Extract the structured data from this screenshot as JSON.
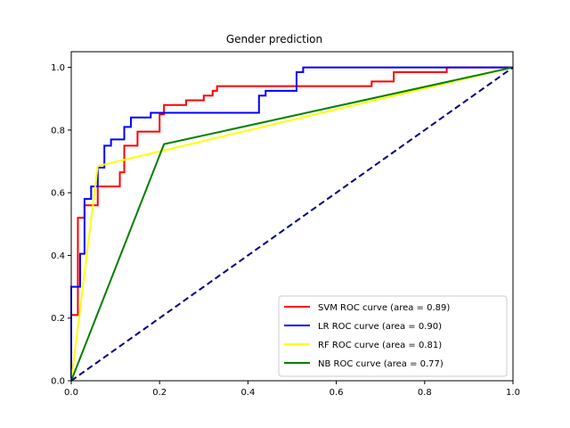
{
  "chart_data": {
    "type": "line",
    "title": "Gender prediction",
    "xlabel": "",
    "ylabel": "",
    "xlim": [
      0.0,
      1.0
    ],
    "ylim": [
      0.0,
      1.05
    ],
    "xticks": [
      "0.0",
      "0.2",
      "0.4",
      "0.6",
      "0.8",
      "1.0"
    ],
    "yticks": [
      "0.0",
      "0.2",
      "0.4",
      "0.6",
      "0.8",
      "1.0"
    ],
    "grid": false,
    "legend_position": "lower-right",
    "series": [
      {
        "name": "SVM ROC curve (area = 0.89)",
        "color": "#ff0000",
        "x": [
          0.0,
          0.0,
          0.015,
          0.015,
          0.03,
          0.03,
          0.06,
          0.06,
          0.11,
          0.11,
          0.12,
          0.12,
          0.15,
          0.15,
          0.2,
          0.2,
          0.21,
          0.21,
          0.26,
          0.26,
          0.3,
          0.3,
          0.32,
          0.32,
          0.33,
          0.33,
          0.68,
          0.68,
          0.73,
          0.73,
          0.85,
          0.85,
          1.0
        ],
        "y": [
          0.0,
          0.21,
          0.21,
          0.52,
          0.52,
          0.56,
          0.56,
          0.62,
          0.62,
          0.665,
          0.665,
          0.75,
          0.75,
          0.795,
          0.795,
          0.85,
          0.85,
          0.88,
          0.88,
          0.895,
          0.895,
          0.91,
          0.91,
          0.925,
          0.925,
          0.94,
          0.94,
          0.955,
          0.955,
          0.985,
          0.985,
          1.0,
          1.0
        ]
      },
      {
        "name": "LR ROC curve (area = 0.90)",
        "color": "#0000ff",
        "x": [
          0.0,
          0.0,
          0.02,
          0.02,
          0.03,
          0.03,
          0.045,
          0.045,
          0.06,
          0.06,
          0.075,
          0.075,
          0.09,
          0.09,
          0.12,
          0.12,
          0.135,
          0.135,
          0.18,
          0.18,
          0.425,
          0.425,
          0.44,
          0.44,
          0.51,
          0.51,
          0.525,
          0.525,
          1.0
        ],
        "y": [
          0.0,
          0.3,
          0.3,
          0.405,
          0.405,
          0.58,
          0.58,
          0.62,
          0.62,
          0.68,
          0.68,
          0.75,
          0.75,
          0.77,
          0.77,
          0.81,
          0.81,
          0.84,
          0.84,
          0.855,
          0.855,
          0.91,
          0.91,
          0.925,
          0.925,
          0.985,
          0.985,
          1.0,
          1.0
        ]
      },
      {
        "name": "RF ROC curve (area = 0.81)",
        "color": "#ffff00",
        "x": [
          0.0,
          0.06,
          1.0
        ],
        "y": [
          0.0,
          0.685,
          1.0
        ]
      },
      {
        "name": "NB ROC curve (area = 0.77)",
        "color": "#008000",
        "x": [
          0.0,
          0.21,
          1.0
        ],
        "y": [
          0.0,
          0.755,
          1.0
        ]
      }
    ],
    "reference_line": {
      "x": [
        0.0,
        1.0
      ],
      "y": [
        0.0,
        1.0
      ],
      "color": "#000080",
      "style": "dashed"
    }
  }
}
